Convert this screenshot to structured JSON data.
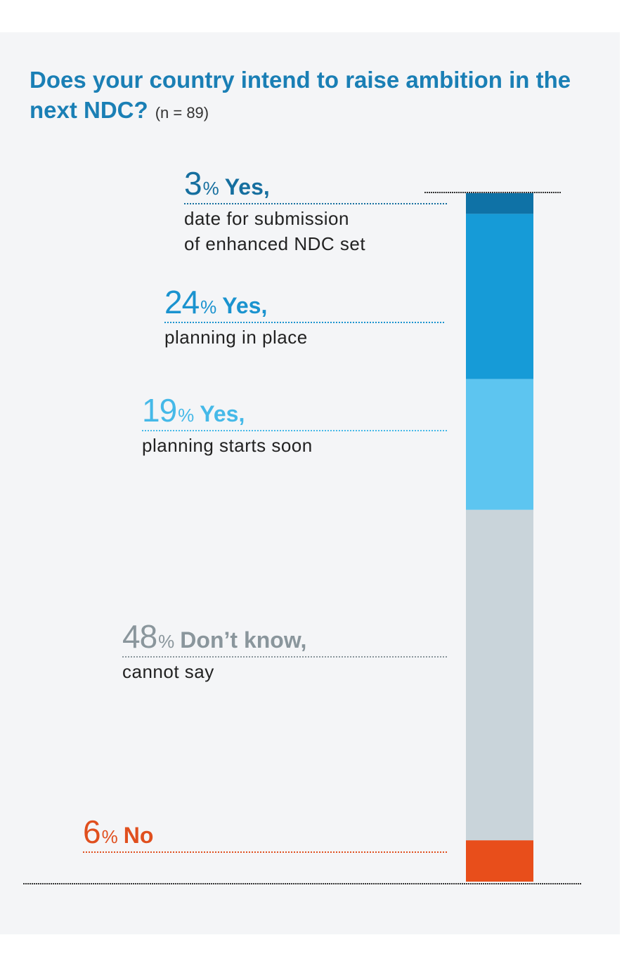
{
  "title": "Does your country intend to raise ambition in the next NDC?",
  "sample": "(n = 89)",
  "chart_data": {
    "type": "bar",
    "orientation": "stacked-vertical",
    "unit": "%",
    "segments": [
      {
        "value": 3,
        "pct_sign": "%",
        "label": "Yes,",
        "desc": [
          "date for submission",
          "of enhanced NDC set"
        ],
        "color": "#0f72a6"
      },
      {
        "value": 24,
        "pct_sign": "%",
        "label": "Yes,",
        "desc": [
          "planning in place"
        ],
        "color": "#169bd7"
      },
      {
        "value": 19,
        "pct_sign": "%",
        "label": "Yes,",
        "desc": [
          "planning starts soon"
        ],
        "color": "#5dc5f0"
      },
      {
        "value": 48,
        "pct_sign": "%",
        "label": "Don’t know,",
        "desc": [
          "cannot say"
        ],
        "color": "#c9d4da"
      },
      {
        "value": 6,
        "pct_sign": "%",
        "label": "No",
        "desc": [],
        "color": "#e84e1b"
      }
    ],
    "label_colors": [
      "#166f9f",
      "#1a93cf",
      "#45b9e8",
      "#8a969c",
      "#e04f1e"
    ]
  }
}
